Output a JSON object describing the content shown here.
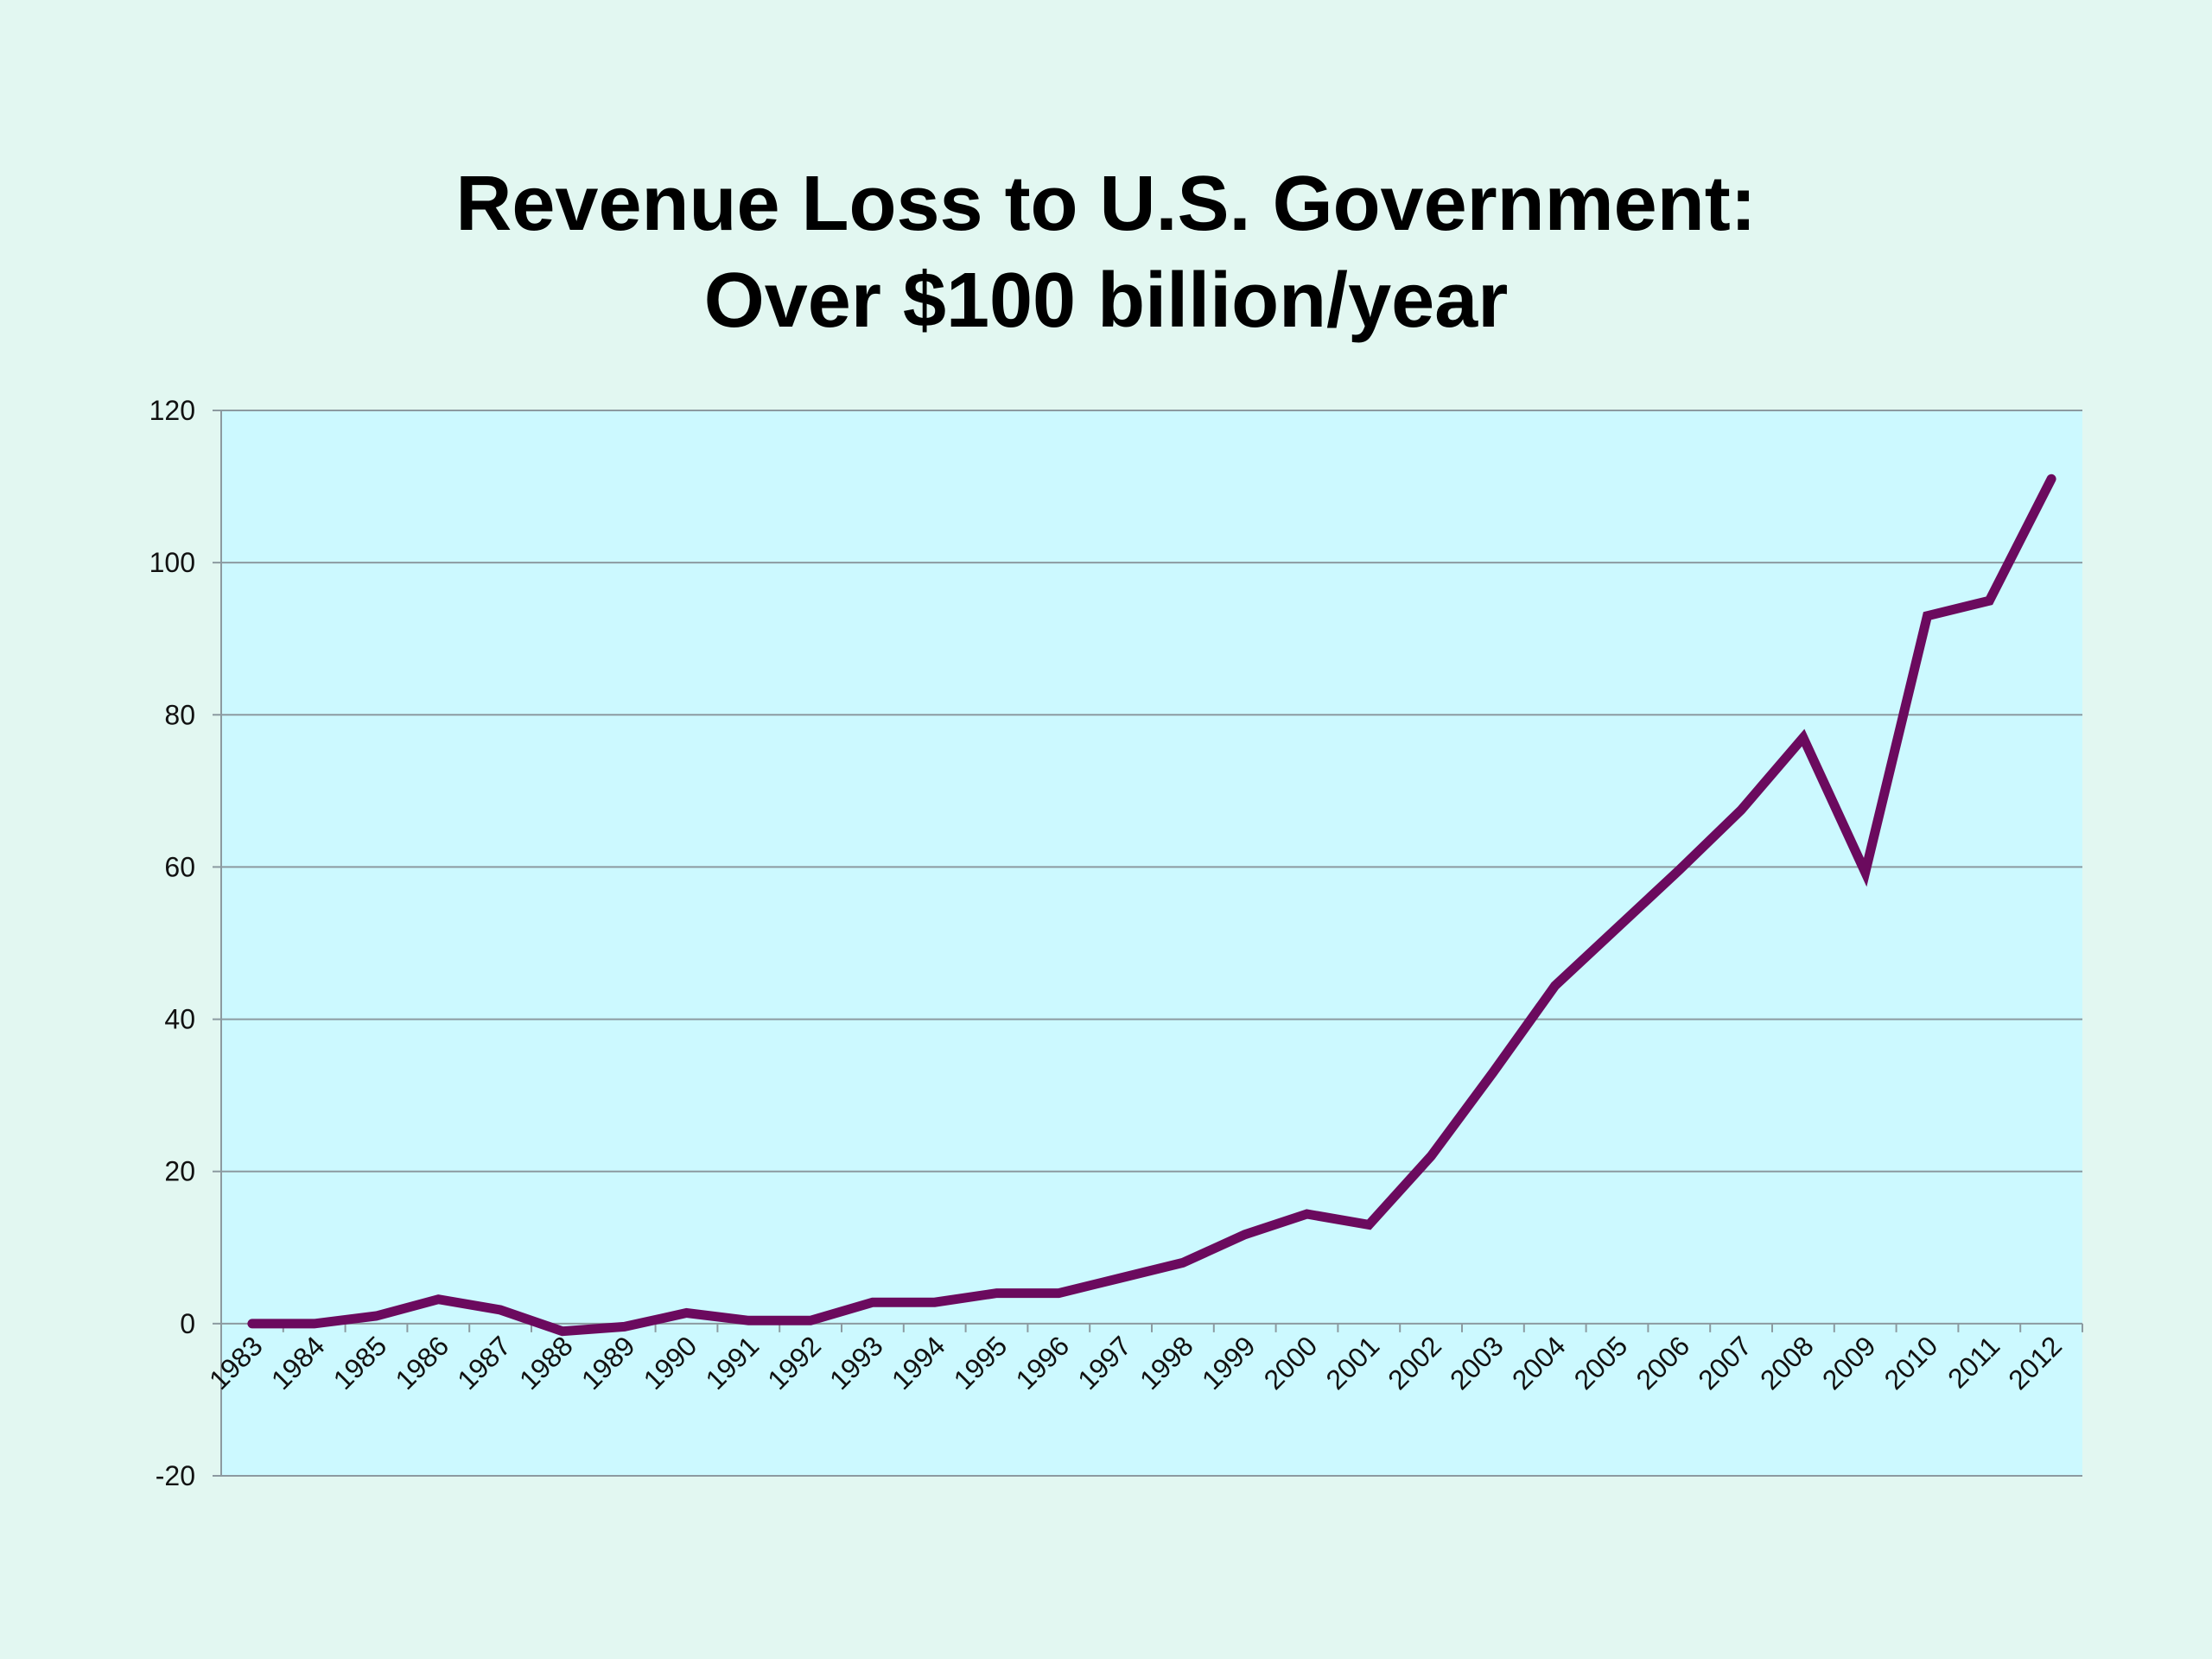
{
  "chart_data": {
    "type": "line",
    "title_lines": [
      "Revenue Loss to U.S. Government:",
      "Over $100 billion/year"
    ],
    "xlabel": "",
    "ylabel": "",
    "x": [
      "1983",
      "1984",
      "1985",
      "1986",
      "1987",
      "1988",
      "1989",
      "1990",
      "1991",
      "1992",
      "1993",
      "1994",
      "1995",
      "1996",
      "1997",
      "1998",
      "1999",
      "2000",
      "2001",
      "2002",
      "2003",
      "2004",
      "2005",
      "2006",
      "2007",
      "2008",
      "2009",
      "2010",
      "2011",
      "2012"
    ],
    "series": [
      {
        "values": [
          0,
          0,
          1,
          3.2,
          1.8,
          -1,
          -0.4,
          1.4,
          0.4,
          0.4,
          2.8,
          2.8,
          4,
          4,
          6,
          8,
          11.7,
          14.4,
          13,
          22,
          33,
          44.4,
          52,
          59.6,
          67.5,
          77,
          59.3,
          93,
          95,
          111
        ]
      }
    ],
    "ylim": [
      -20,
      120
    ],
    "yticks": [
      -20,
      0,
      20,
      40,
      60,
      80,
      100,
      120
    ],
    "grid": true,
    "legend": "none",
    "colors": {
      "line": "#6b0a5e",
      "plot_background": "#ccf9ff",
      "page_background": "#e2f7f1",
      "gridline": "#8c9aa0",
      "axis": "#8c9aa0"
    }
  }
}
